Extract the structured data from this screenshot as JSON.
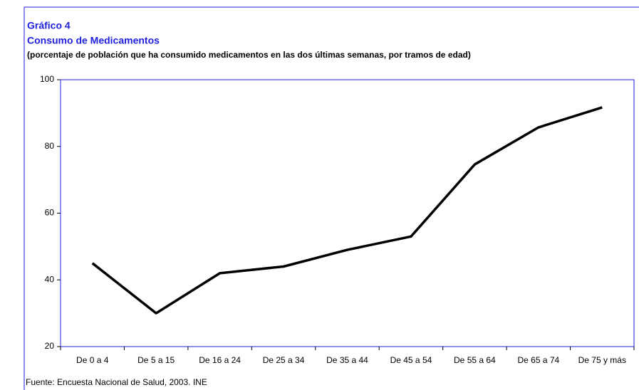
{
  "chart_data": {
    "type": "line",
    "title": "Gráfico 4",
    "subtitle": "Consumo de Medicamentos",
    "description": "(porcentaje de población que ha consumido medicamentos en las dos últimas semanas, por tramos de edad)",
    "source": "Fuente: Encuesta Nacional de Salud, 2003. INE",
    "categories": [
      "De 0 a 4",
      "De 5 a 15",
      "De 16 a 24",
      "De 25 a 34",
      "De 35 a 44",
      "De 45 a 54",
      "De 55 a 64",
      "De 65 a 74",
      "De 75 y más"
    ],
    "values": [
      45,
      30,
      42,
      44,
      49,
      53,
      74.6,
      85.7,
      91.7
    ],
    "color": "#000000",
    "ylim": [
      20,
      100
    ],
    "yticks": [
      20,
      40,
      60,
      80,
      100
    ],
    "grid": false
  }
}
